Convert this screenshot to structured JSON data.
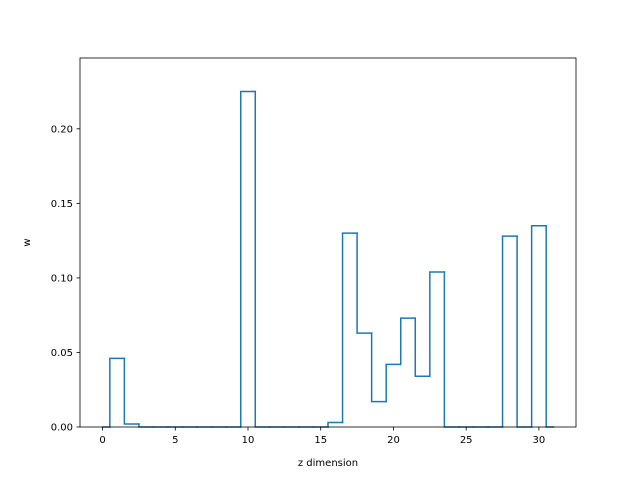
{
  "chart_data": {
    "type": "line",
    "step": "mid",
    "title": "",
    "xlabel": "z dimension",
    "ylabel": "w",
    "xlim": [
      -1.55,
      32.55
    ],
    "ylim": [
      0,
      0.2475
    ],
    "grid": false,
    "line_color": "#1f77b4",
    "x": [
      0,
      1,
      2,
      3,
      4,
      5,
      6,
      7,
      8,
      9,
      10,
      11,
      12,
      13,
      14,
      15,
      16,
      17,
      18,
      19,
      20,
      21,
      22,
      23,
      24,
      25,
      26,
      27,
      28,
      29,
      30,
      31
    ],
    "y": [
      0.0,
      0.046,
      0.002,
      0.0,
      0.0,
      0.0,
      0.0,
      0.0,
      0.0,
      0.0,
      0.225,
      0.0,
      0.0,
      0.0,
      0.0,
      0.0,
      0.003,
      0.13,
      0.063,
      0.017,
      0.042,
      0.073,
      0.034,
      0.104,
      0.0,
      0.0,
      0.0,
      0.0,
      0.128,
      0.0,
      0.135,
      0.0
    ],
    "xticks": [
      0,
      5,
      10,
      15,
      20,
      25,
      30
    ],
    "xtick_labels": [
      "0",
      "5",
      "10",
      "15",
      "20",
      "25",
      "30"
    ],
    "yticks": [
      0.0,
      0.05,
      0.1,
      0.15,
      0.2
    ],
    "ytick_labels": [
      "0.00",
      "0.05",
      "0.10",
      "0.15",
      "0.20"
    ]
  }
}
